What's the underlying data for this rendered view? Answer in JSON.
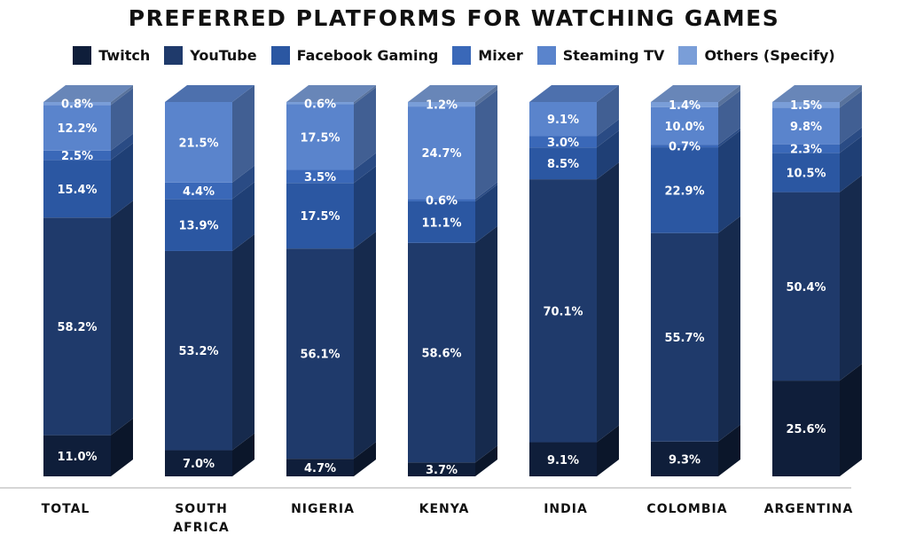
{
  "chart_data": {
    "type": "bar",
    "stacked": true,
    "title": "PREFERRED PLATFORMS FOR WATCHING GAMES",
    "categories": [
      [
        "TOTAL"
      ],
      [
        "SOUTH",
        "AFRICA"
      ],
      [
        "NIGERIA"
      ],
      [
        "KENYA"
      ],
      [
        "INDIA"
      ],
      [
        "COLOMBIA"
      ],
      [
        "ARGENTINA"
      ]
    ],
    "series": [
      {
        "name": "Twitch",
        "color": "#0f1e3a",
        "values": [
          11.0,
          7.0,
          4.7,
          3.7,
          9.1,
          9.3,
          25.6
        ]
      },
      {
        "name": "YouTube",
        "color": "#1f3a6b",
        "values": [
          58.2,
          53.2,
          56.1,
          58.6,
          70.1,
          55.7,
          50.4
        ]
      },
      {
        "name": "Facebook Gaming",
        "color": "#2b57a2",
        "values": [
          15.4,
          13.9,
          17.5,
          11.1,
          8.5,
          22.9,
          10.5
        ]
      },
      {
        "name": "Mixer",
        "color": "#3a68b8",
        "values": [
          2.5,
          4.4,
          3.5,
          0.6,
          3.0,
          0.7,
          2.3
        ]
      },
      {
        "name": "Steaming TV",
        "color": "#5a84cc",
        "values": [
          12.2,
          21.5,
          17.5,
          24.7,
          9.1,
          10.0,
          9.8
        ]
      },
      {
        "name": "Others (Specify)",
        "color": "#7a9ed8",
        "values": [
          0.8,
          0.0,
          0.6,
          1.2,
          0.0,
          1.4,
          1.5
        ]
      }
    ],
    "labels": [
      [
        "11.0%",
        "58.2%",
        "15.4%",
        "2.5%",
        "12.2%",
        "0.8%"
      ],
      [
        "7.0%",
        "53.2%",
        "13.9%",
        "4.4%",
        "21.5%",
        ""
      ],
      [
        "4.7%",
        "56.1%",
        "17.5%",
        "3.5%",
        "17.5%",
        "0.6%"
      ],
      [
        "3.7%",
        "58.6%",
        "11.1%",
        "0.6%",
        "24.7%",
        "1.2%"
      ],
      [
        "9.1%",
        "70.1%",
        "8.5%",
        "3.0%",
        "9.1%",
        ""
      ],
      [
        "9.3%",
        "55.7%",
        "22.9%",
        "0.7%",
        "10.0%",
        "1.4%"
      ],
      [
        "25.6%",
        "50.4%",
        "10.5%",
        "2.3%",
        "9.8%",
        "1.5%"
      ]
    ],
    "ylim": [
      0,
      100
    ],
    "legend_position": "top",
    "grid": false,
    "style": "3d-stacked-columns"
  }
}
